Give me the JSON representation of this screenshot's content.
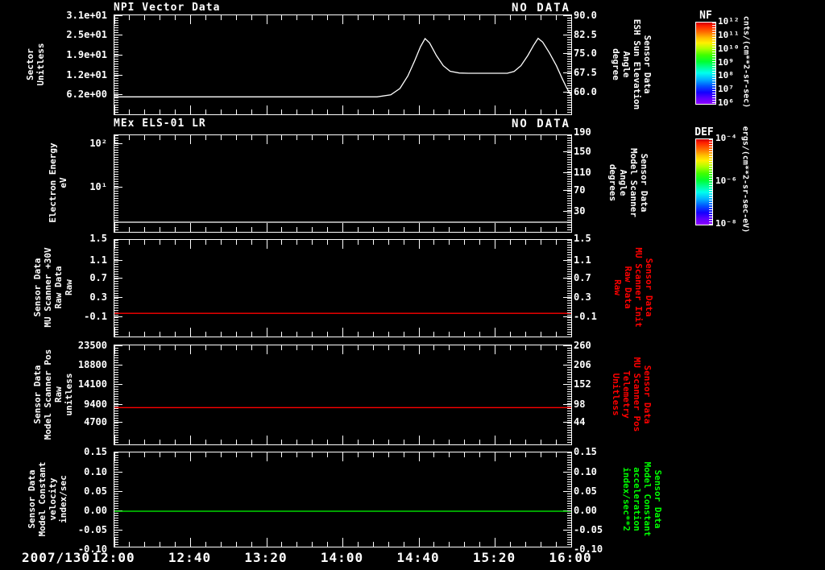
{
  "chart_data": {
    "type": "line",
    "background": "#000000",
    "x_axis": {
      "date": "2007/130",
      "labels": [
        "12:00",
        "12:40",
        "13:20",
        "14:00",
        "14:40",
        "15:20",
        "16:00"
      ],
      "range_hours": [
        12,
        16
      ],
      "minor_ticks_per_major": 5
    },
    "panels": [
      {
        "name": "npi-vector-data",
        "title": "NPI Vector Data",
        "status": "NO DATA",
        "left_label": [
          "Sector",
          "Unitless"
        ],
        "right_label": [
          "Sensor Data",
          "ESH Sun Elevation",
          "Angle",
          "degree"
        ],
        "right_label_color": "#ffffff",
        "yticks_left": [
          {
            "label": "3.1e+01",
            "f": 0.008
          },
          {
            "label": "2.5e+01",
            "f": 0.203
          },
          {
            "label": "1.9e+01",
            "f": 0.407
          },
          {
            "label": "1.2e+01",
            "f": 0.61
          },
          {
            "label": "6.2e+00",
            "f": 0.805
          }
        ],
        "yticks_right": [
          {
            "label": "90.0",
            "f": 0.01
          },
          {
            "label": "82.5",
            "f": 0.202
          },
          {
            "label": "75.0",
            "f": 0.394
          },
          {
            "label": "67.5",
            "f": 0.586
          },
          {
            "label": "60.0",
            "f": 0.778
          }
        ],
        "yrange": [
          51.3,
          90.4
        ],
        "series": [
          {
            "name": "ESH Sun Elevation Angle (degree)",
            "color": "#ffffff",
            "points": [
              [
                12.0,
                58.2
              ],
              [
                14.3,
                58.2
              ],
              [
                14.42,
                59.0
              ],
              [
                14.5,
                61.5
              ],
              [
                14.57,
                66.5
              ],
              [
                14.63,
                72.5
              ],
              [
                14.68,
                78.0
              ],
              [
                14.72,
                81.2
              ],
              [
                14.76,
                79.5
              ],
              [
                14.82,
                74.5
              ],
              [
                14.88,
                70.5
              ],
              [
                14.94,
                68.3
              ],
              [
                15.02,
                67.6
              ],
              [
                15.1,
                67.5
              ],
              [
                15.44,
                67.5
              ],
              [
                15.5,
                68.2
              ],
              [
                15.56,
                70.5
              ],
              [
                15.62,
                74.5
              ],
              [
                15.67,
                78.5
              ],
              [
                15.71,
                81.3
              ],
              [
                15.75,
                79.8
              ],
              [
                15.81,
                75.5
              ],
              [
                15.87,
                70.5
              ],
              [
                15.92,
                65.5
              ],
              [
                15.96,
                61.8
              ],
              [
                16.0,
                58.8
              ]
            ]
          }
        ]
      },
      {
        "name": "mex-els-01-lr",
        "title": "MEx ELS-01 LR",
        "status": "NO DATA",
        "left_label": [
          "Electron Energy",
          "eV"
        ],
        "right_label": [
          "Sensor Data",
          "Model Scanner",
          "Angle",
          "degrees"
        ],
        "right_label_color": "#ffffff",
        "yticks_left": [
          {
            "label": "10²",
            "f": 0.092
          },
          {
            "label": "10¹",
            "f": 0.542
          }
        ],
        "yticks_right": [
          {
            "label": "190",
            "f": -0.022
          },
          {
            "label": "150",
            "f": 0.172
          },
          {
            "label": "110",
            "f": 0.394
          },
          {
            "label": "70",
            "f": 0.575
          },
          {
            "label": "30",
            "f": 0.789
          }
        ],
        "yrange": [
          -12,
          188
        ],
        "series": [
          {
            "name": "Model Scanner Angle (degrees)",
            "color": "#ffffff",
            "points": [
              [
                12.0,
                8
              ],
              [
                16.0,
                8
              ]
            ]
          }
        ]
      },
      {
        "name": "mu-scanner-30v-raw",
        "left_label": [
          "Sensor Data",
          "MU Scanner +30V",
          "Raw Data",
          "Raw"
        ],
        "right_label": [
          "Sensor Data",
          "MU Scanner Init",
          "Raw Data",
          "Raw"
        ],
        "right_label_color": "#ff0000",
        "yticks_left": [
          {
            "label": "1.5",
            "f": -0.011
          },
          {
            "label": "1.1",
            "f": 0.214
          },
          {
            "label": "0.7",
            "f": 0.4
          },
          {
            "label": "0.3",
            "f": 0.603
          },
          {
            "label": "-0.1",
            "f": 0.797
          }
        ],
        "yticks_right": [
          {
            "label": "1.5",
            "f": -0.011
          },
          {
            "label": "1.1",
            "f": 0.214
          },
          {
            "label": "0.7",
            "f": 0.4
          },
          {
            "label": "0.3",
            "f": 0.603
          },
          {
            "label": "-0.1",
            "f": 0.797
          }
        ],
        "yrange": [
          -0.48,
          1.52
        ],
        "series": [
          {
            "name": "MU Scanner +30V Raw",
            "color": "#ff0000",
            "points": [
              [
                12.0,
                0.0
              ],
              [
                16.0,
                0.0
              ]
            ]
          }
        ]
      },
      {
        "name": "model-scanner-pos-raw",
        "left_label": [
          "Sensor Data",
          "Model Scanner Pos",
          "Raw",
          "unitless"
        ],
        "right_label": [
          "Sensor Data",
          "MU Scanner Pos",
          "Telemetry",
          "Unitless"
        ],
        "right_label_color": "#ff0000",
        "yticks_left": [
          {
            "label": "23500",
            "f": 0.01
          },
          {
            "label": "18800",
            "f": 0.204
          },
          {
            "label": "14100",
            "f": 0.398
          },
          {
            "label": "9400",
            "f": 0.604
          },
          {
            "label": "4700",
            "f": 0.78
          }
        ],
        "yticks_right": [
          {
            "label": "260",
            "f": 0.01
          },
          {
            "label": "206",
            "f": 0.204
          },
          {
            "label": "152",
            "f": 0.398
          },
          {
            "label": "98",
            "f": 0.604
          },
          {
            "label": "44",
            "f": 0.78
          }
        ],
        "yrange": [
          -670,
          23744
        ],
        "series": [
          {
            "name": "Model Scanner Pos Raw",
            "color": "#ff0000",
            "points": [
              [
                12.0,
                8400
              ],
              [
                16.0,
                8400
              ]
            ]
          }
        ]
      },
      {
        "name": "model-constant-velocity",
        "left_label": [
          "Sensor Data",
          "Model Constant",
          "velocity",
          "index/sec"
        ],
        "right_label": [
          "Sensor Data",
          "Model Constant",
          "acceleration",
          "index/sec**2"
        ],
        "right_label_color": "#00ff00",
        "yticks_left": [
          {
            "label": "0.15",
            "f": 0.003
          },
          {
            "label": "0.10",
            "f": 0.211
          },
          {
            "label": "0.05",
            "f": 0.419
          },
          {
            "label": "0.00",
            "f": 0.624
          },
          {
            "label": "-0.05",
            "f": 0.829
          },
          {
            "label": "-0.10",
            "f": 1.034
          }
        ],
        "yticks_right": [
          {
            "label": "0.15",
            "f": 0.003
          },
          {
            "label": "0.10",
            "f": 0.211
          },
          {
            "label": "0.05",
            "f": 0.419
          },
          {
            "label": "0.00",
            "f": 0.624
          },
          {
            "label": "-0.05",
            "f": 0.829
          },
          {
            "label": "-0.10",
            "f": 1.034
          }
        ],
        "yrange": [
          -0.0909,
          0.1507
        ],
        "series": [
          {
            "name": "Model Constant velocity",
            "color": "#00ff00",
            "points": [
              [
                12.0,
                0.0
              ],
              [
                16.0,
                0.0
              ]
            ]
          }
        ]
      }
    ],
    "colorbars": [
      {
        "title": "NF",
        "unit": "cnts/(cm**2-sr-sec)",
        "ticks": [
          "10¹²",
          "10¹¹",
          "10¹⁰",
          "10⁹",
          "10⁸",
          "10⁷",
          "10⁶"
        ]
      },
      {
        "title": "DEF",
        "unit": "ergs/(cm**2-sr-sec-eV)",
        "ticks": [
          "10⁻⁴",
          "10⁻⁶",
          "10⁻⁸"
        ]
      }
    ],
    "colors": {
      "foreground": "#ffffff",
      "red_series": "#ff0000",
      "green_series": "#00ff00",
      "background": "#000000"
    }
  }
}
